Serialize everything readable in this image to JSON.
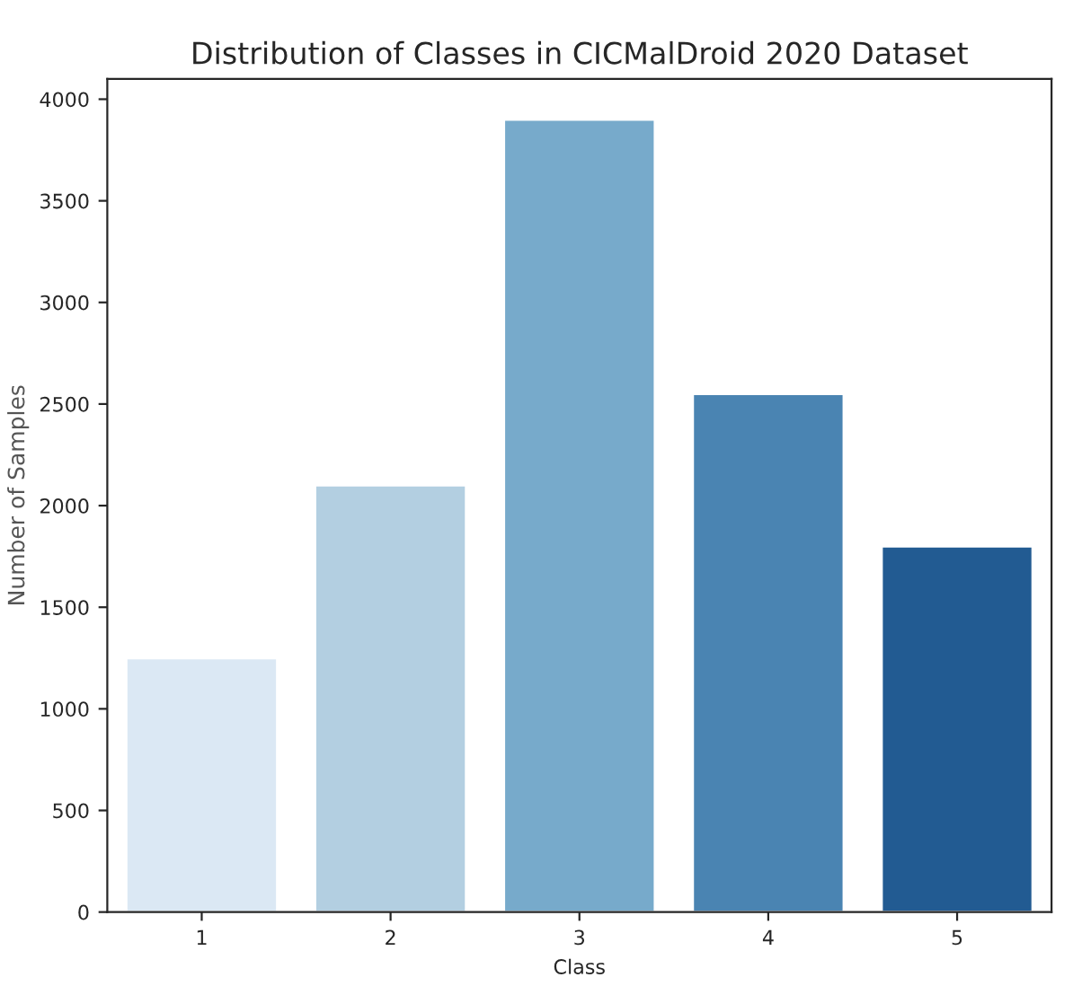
{
  "chart_data": {
    "type": "bar",
    "title": "Distribution of Classes in CICMalDroid 2020 Dataset",
    "xlabel": "Class",
    "ylabel": "Number of Samples",
    "categories": [
      "1",
      "2",
      "3",
      "4",
      "5"
    ],
    "values": [
      1250,
      2100,
      3900,
      2550,
      1800
    ],
    "colors": [
      "#dbe8f4",
      "#b3cfe1",
      "#77aacb",
      "#4a84b2",
      "#225b92"
    ],
    "ylim": [
      0,
      4100
    ],
    "yticks": [
      0,
      500,
      1000,
      1500,
      2000,
      2500,
      3000,
      3500,
      4000
    ],
    "grid": false,
    "legend": false
  }
}
